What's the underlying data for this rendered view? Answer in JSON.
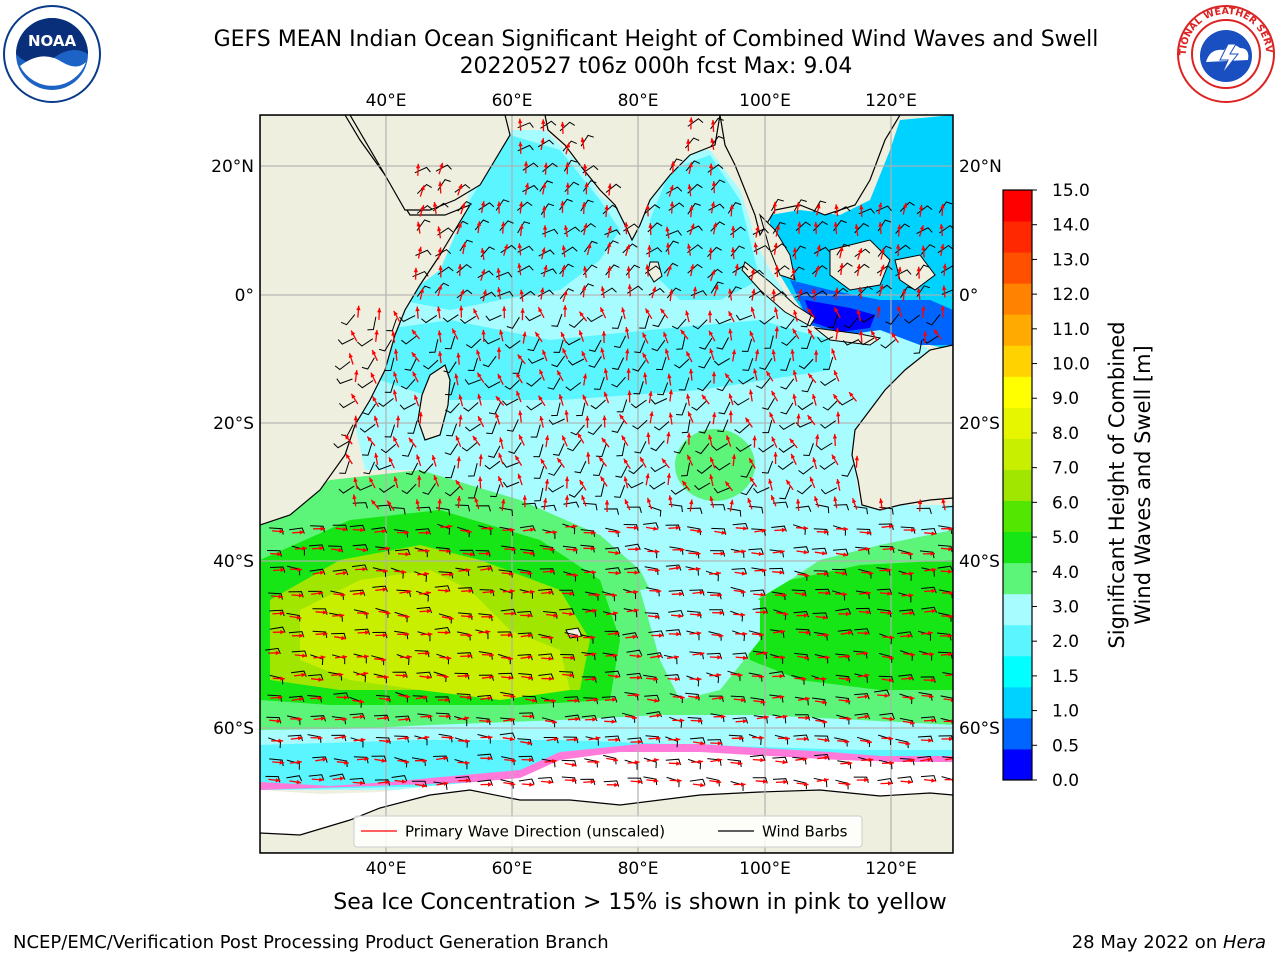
{
  "header": {
    "title_line1": "GEFS MEAN Indian Ocean Significant Height of Combined Wind Waves and Swell",
    "title_line2": "20220527 t06z 000h fcst   Max: 9.04"
  },
  "logos": {
    "left": {
      "icon": "noaa-logo",
      "text": "NOAA"
    },
    "right": {
      "icon": "national-weather-service-logo",
      "text": "NATIONAL WEATHER SERVICE"
    }
  },
  "map": {
    "projection": "PlateCarree",
    "lon_range": [
      20,
      130
    ],
    "lat_range": [
      -70,
      28
    ],
    "lon_ticks": [
      "40°E",
      "60°E",
      "80°E",
      "100°E",
      "120°E"
    ],
    "lat_ticks": [
      "20°N",
      "0°",
      "20°S",
      "40°S",
      "60°S"
    ],
    "gridlines": true,
    "land_color": "#efefdf",
    "sea_ice_color": "#ffffff",
    "field_max": 9.04
  },
  "colorbar": {
    "label_line1": "Significant Height of Combined",
    "label_line2": "Wind Waves and Swell [m]",
    "ticks": [
      "0.0",
      "0.5",
      "1.0",
      "1.5",
      "2.0",
      "3.0",
      "4.0",
      "5.0",
      "6.0",
      "7.0",
      "8.0",
      "9.0",
      "10.0",
      "11.0",
      "12.0",
      "13.0",
      "14.0",
      "15.0"
    ],
    "colors": [
      "#0000ff",
      "#0064ff",
      "#00d2ff",
      "#00ffff",
      "#5af5ff",
      "#a6fcff",
      "#5cf57a",
      "#16e616",
      "#52e600",
      "#a0e600",
      "#c8ef00",
      "#e6f500",
      "#ffff00",
      "#ffd200",
      "#ffaa00",
      "#ff8200",
      "#ff5000",
      "#ff2800",
      "#ff0000"
    ]
  },
  "legend": {
    "wave_direction": "Primary Wave Direction (unscaled)",
    "wind_barbs": "Wind Barbs",
    "wave_color": "#ff0000",
    "barb_color": "#000000"
  },
  "notes": {
    "sea_ice": "Sea Ice Concentration > 15% is shown in pink to yellow"
  },
  "footer": {
    "left": "NCEP/EMC/Verification Post Processing Product Generation Branch",
    "date": "28 May 2022 on ",
    "machine": "Hera"
  }
}
